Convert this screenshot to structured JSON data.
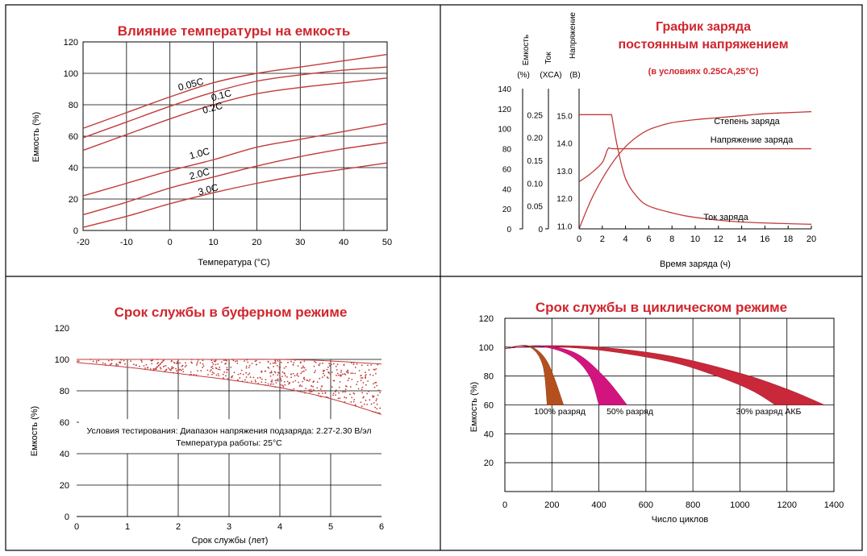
{
  "charts": {
    "temp": {
      "title": "Влияние температуры на емкость",
      "xlabel": "Температура (°C)",
      "ylabel": "Емкость (%)",
      "xticks": [
        "-20",
        "-10",
        "0",
        "10",
        "20",
        "30",
        "40",
        "50"
      ],
      "yticks": [
        "0",
        "20",
        "40",
        "60",
        "80",
        "100",
        "120"
      ]
    },
    "charge": {
      "title_line1": "График заряда",
      "title_line2": "постоянным напряжением",
      "subtitle": "(в условиях 0.25CA,25°C)",
      "axis1_label_a": "Емкость",
      "axis1_label_b": "(%)",
      "axis2_label_a": "Ток",
      "axis2_label_b": "(XCA)",
      "axis3_label_a": "Напряжение",
      "axis3_label_b": "(В)",
      "xlabel": "Время заряда (ч)",
      "xticks": [
        "0",
        "2",
        "4",
        "6",
        "8",
        "10",
        "12",
        "14",
        "16",
        "18",
        "20"
      ],
      "cap_ticks": [
        "0",
        "20",
        "40",
        "60",
        "80",
        "100",
        "120",
        "140"
      ],
      "cur_ticks": [
        "0",
        "0.05",
        "0.10",
        "0.15",
        "0.20",
        "0.25"
      ],
      "volt_ticks": [
        "11.0",
        "12.0",
        "13.0",
        "14.0",
        "15.0"
      ]
    },
    "float": {
      "title": "Срок службы в буферном режиме",
      "xlabel": "Срок службы (лет)",
      "ylabel": "Емкость (%)",
      "xticks": [
        "0",
        "1",
        "2",
        "3",
        "4",
        "5",
        "6"
      ],
      "yticks": [
        "0",
        "20",
        "40",
        "60",
        "80",
        "100",
        "120"
      ],
      "note_line1": "Условия тестирования: Диапазон напряжения подзаряда: 2.27-2.30 В/эл",
      "note_line2": "Температура работы: 25°C"
    },
    "cycle": {
      "title": "Срок службы в циклическом режиме",
      "xlabel": "Число циклов",
      "ylabel": "Емкость (%)",
      "xticks": [
        "0",
        "200",
        "400",
        "600",
        "800",
        "1000",
        "1200",
        "1400"
      ],
      "yticks": [
        "20",
        "40",
        "60",
        "80",
        "100",
        "120"
      ]
    }
  },
  "chart_data": [
    {
      "type": "line",
      "title": "Влияние температуры на емкость",
      "xlabel": "Температура (°C)",
      "ylabel": "Емкость (%)",
      "xlim": [
        -20,
        50
      ],
      "ylim": [
        0,
        120
      ],
      "grid": true,
      "series": [
        {
          "name": "0.05C",
          "x": [
            -20,
            -10,
            0,
            10,
            20,
            30,
            40,
            50
          ],
          "values": [
            65,
            75,
            85,
            94,
            100,
            104,
            108,
            112
          ]
        },
        {
          "name": "0.1C",
          "x": [
            -20,
            -10,
            0,
            10,
            20,
            30,
            40,
            50
          ],
          "values": [
            59,
            69,
            79,
            88,
            95,
            99,
            102,
            104
          ]
        },
        {
          "name": "0.2C",
          "x": [
            -20,
            -10,
            0,
            10,
            20,
            30,
            40,
            50
          ],
          "values": [
            51,
            61,
            71,
            80,
            87,
            91,
            94,
            97
          ]
        },
        {
          "name": "1.0C",
          "x": [
            -20,
            -10,
            0,
            10,
            20,
            30,
            40,
            50
          ],
          "values": [
            22,
            30,
            38,
            45,
            53,
            58,
            63,
            68
          ]
        },
        {
          "name": "2.0C",
          "x": [
            -20,
            -10,
            0,
            10,
            20,
            30,
            40,
            50
          ],
          "values": [
            10,
            18,
            27,
            34,
            41,
            47,
            52,
            56
          ]
        },
        {
          "name": "3.0C",
          "x": [
            -20,
            -10,
            0,
            10,
            20,
            30,
            40,
            50
          ],
          "values": [
            2,
            9,
            17,
            24,
            30,
            35,
            39,
            43
          ]
        }
      ]
    },
    {
      "type": "line",
      "title": "График заряда постоянным напряжением",
      "subtitle": "(в условиях 0.25CA,25°C)",
      "xlabel": "Время заряда (ч)",
      "xlim": [
        0,
        20
      ],
      "series": [
        {
          "name": "Степень заряда",
          "axis": "Емкость (%)",
          "x": [
            0,
            1,
            2,
            3,
            4,
            5,
            6,
            7,
            8,
            10,
            12,
            14,
            16,
            18,
            20
          ],
          "values": [
            0,
            28,
            50,
            68,
            82,
            92,
            99,
            103,
            106,
            109,
            111,
            113,
            115,
            116,
            117
          ]
        },
        {
          "name": "Напряжение заряда",
          "axis": "Напряжение (В)",
          "x": [
            0,
            1,
            2,
            2.5,
            3,
            6,
            10,
            20
          ],
          "values": [
            12.6,
            12.9,
            13.3,
            13.8,
            13.8,
            13.8,
            13.8,
            13.8
          ]
        },
        {
          "name": "Ток заряда",
          "axis": "Ток (XCA)",
          "x": [
            0,
            2.8,
            3.3,
            4,
            5,
            6,
            8,
            10,
            14,
            20
          ],
          "values": [
            0.25,
            0.25,
            0.18,
            0.11,
            0.07,
            0.05,
            0.035,
            0.025,
            0.015,
            0.01
          ]
        }
      ],
      "cap_range": [
        0,
        140
      ],
      "current_range": [
        0,
        0.25
      ],
      "voltage_range": [
        11.0,
        15.0
      ]
    },
    {
      "type": "area",
      "title": "Срок службы в буферном режиме",
      "xlabel": "Срок службы (лет)",
      "ylabel": "Емкость (%)",
      "xlim": [
        0,
        6
      ],
      "ylim": [
        0,
        120
      ],
      "band": {
        "x": [
          0,
          1,
          2,
          3,
          4,
          5,
          6
        ],
        "upper": [
          100,
          100,
          100,
          100,
          100,
          99,
          97
        ],
        "lower": [
          98,
          95,
          91,
          87,
          82,
          75,
          65
        ]
      }
    },
    {
      "type": "area",
      "title": "Срок службы в циклическом режиме",
      "xlabel": "Число циклов",
      "ylabel": "Емкость (%)",
      "xlim": [
        0,
        1400
      ],
      "ylim": [
        0,
        120
      ],
      "series": [
        {
          "name": "100% разряд",
          "x_end_range": [
            180,
            250
          ],
          "color": "#b4501e"
        },
        {
          "name": "50% разряд",
          "x_end_range": [
            400,
            520
          ],
          "color": "#d4147e"
        },
        {
          "name": "30% разряд АКБ",
          "x_end_range": [
            1150,
            1360
          ],
          "color": "#c8283a"
        }
      ]
    }
  ]
}
